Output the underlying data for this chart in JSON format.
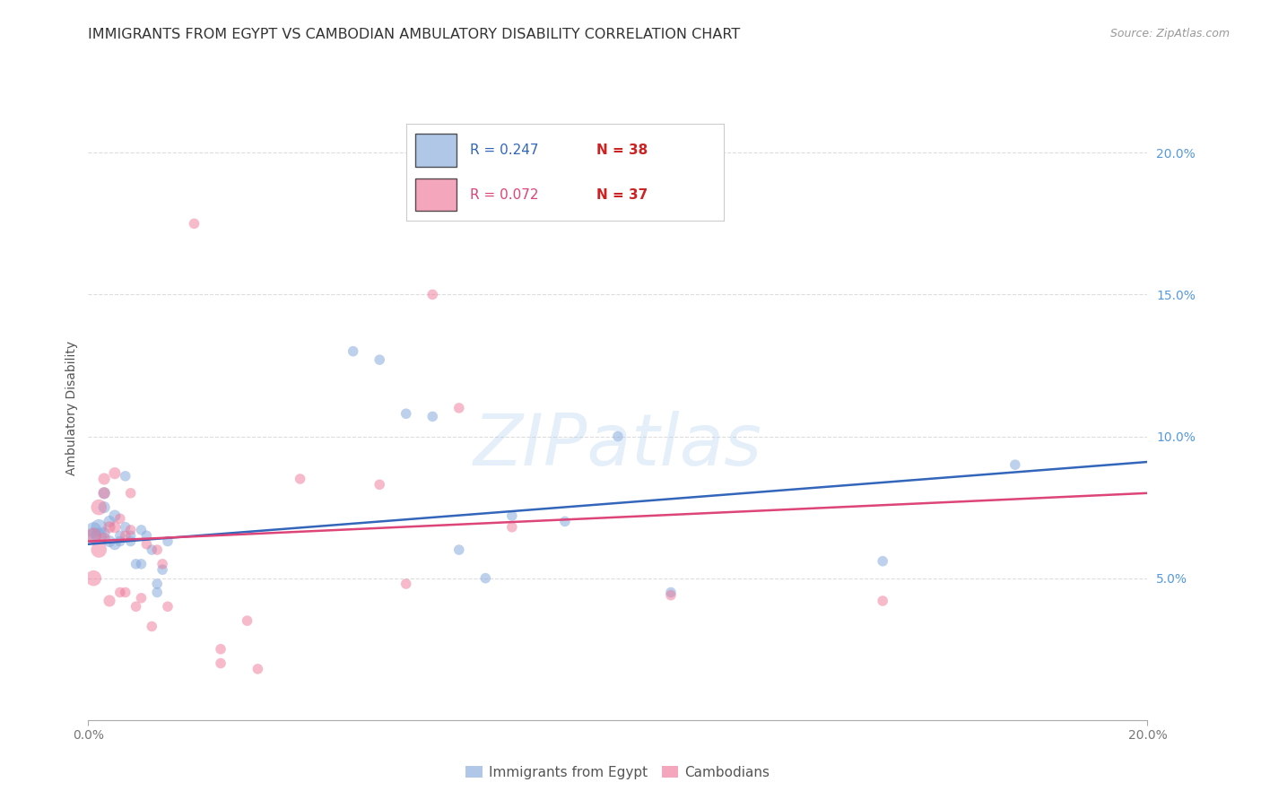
{
  "title": "IMMIGRANTS FROM EGYPT VS CAMBODIAN AMBULATORY DISABILITY CORRELATION CHART",
  "source": "Source: ZipAtlas.com",
  "ylabel": "Ambulatory Disability",
  "xlim": [
    0,
    0.2
  ],
  "ylim": [
    0,
    0.22
  ],
  "xticks": [
    0.0,
    0.2
  ],
  "yticks_right": [
    0.05,
    0.1,
    0.15,
    0.2
  ],
  "background_color": "#ffffff",
  "grid_color": "#dddddd",
  "blue_color": "#88aadd",
  "pink_color": "#ee7799",
  "blue_line_color": "#3366bb",
  "pink_line_color": "#dd4477",
  "legend_R_blue": "R = 0.247",
  "legend_N_blue": "N = 38",
  "legend_R_pink": "R = 0.072",
  "legend_N_pink": "N = 37",
  "legend_label_blue": "Immigrants from Egypt",
  "legend_label_pink": "Cambodians",
  "watermark": "ZIPatlas",
  "blue_x": [
    0.001,
    0.001,
    0.002,
    0.002,
    0.003,
    0.003,
    0.003,
    0.004,
    0.004,
    0.005,
    0.005,
    0.006,
    0.006,
    0.007,
    0.007,
    0.008,
    0.008,
    0.009,
    0.01,
    0.01,
    0.011,
    0.012,
    0.013,
    0.013,
    0.014,
    0.015,
    0.05,
    0.055,
    0.06,
    0.065,
    0.07,
    0.075,
    0.08,
    0.09,
    0.1,
    0.11,
    0.15,
    0.175
  ],
  "blue_y": [
    0.065,
    0.067,
    0.068,
    0.065,
    0.066,
    0.075,
    0.08,
    0.063,
    0.07,
    0.062,
    0.072,
    0.063,
    0.065,
    0.068,
    0.086,
    0.063,
    0.065,
    0.055,
    0.055,
    0.067,
    0.065,
    0.06,
    0.045,
    0.048,
    0.053,
    0.063,
    0.13,
    0.127,
    0.108,
    0.107,
    0.06,
    0.05,
    0.072,
    0.07,
    0.1,
    0.045,
    0.056,
    0.09
  ],
  "pink_x": [
    0.001,
    0.001,
    0.002,
    0.002,
    0.003,
    0.003,
    0.004,
    0.004,
    0.005,
    0.005,
    0.006,
    0.006,
    0.007,
    0.007,
    0.008,
    0.008,
    0.009,
    0.01,
    0.011,
    0.012,
    0.013,
    0.014,
    0.015,
    0.02,
    0.025,
    0.03,
    0.04,
    0.055,
    0.06,
    0.065,
    0.07,
    0.08,
    0.11,
    0.15,
    0.025,
    0.032,
    0.003
  ],
  "pink_y": [
    0.065,
    0.05,
    0.06,
    0.075,
    0.064,
    0.085,
    0.068,
    0.042,
    0.068,
    0.087,
    0.071,
    0.045,
    0.065,
    0.045,
    0.08,
    0.067,
    0.04,
    0.043,
    0.062,
    0.033,
    0.06,
    0.055,
    0.04,
    0.175,
    0.025,
    0.035,
    0.085,
    0.083,
    0.048,
    0.15,
    0.11,
    0.068,
    0.044,
    0.042,
    0.02,
    0.018,
    0.08
  ],
  "blue_trend_y_start": 0.062,
  "blue_trend_y_end": 0.091,
  "pink_trend_y_start": 0.063,
  "pink_trend_y_end": 0.08,
  "title_fontsize": 11.5,
  "axis_label_fontsize": 10,
  "tick_fontsize": 10,
  "right_tick_color": "#5599dd",
  "xtick_color": "#777777"
}
